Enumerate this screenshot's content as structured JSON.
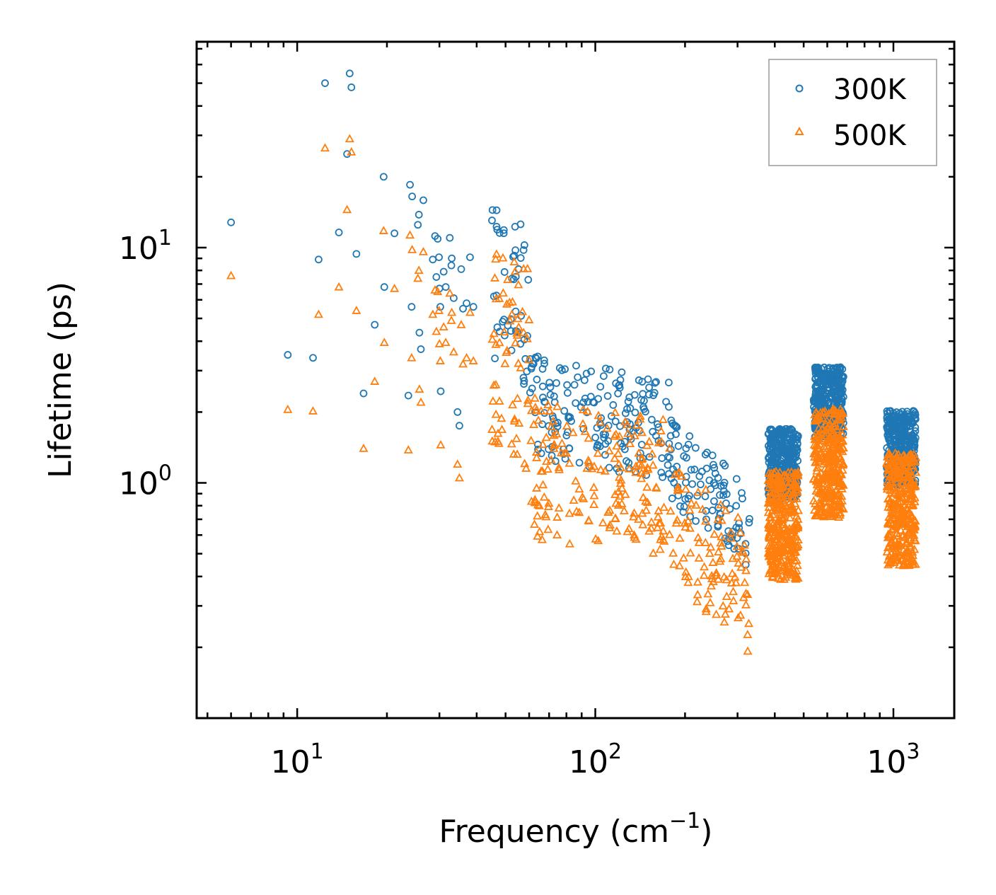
{
  "chart_data": {
    "type": "scatter",
    "xscale": "log",
    "yscale": "log",
    "xlabel": "Frequency (cm",
    "xlabel_sup": "−1",
    "xlabel_end": ")",
    "ylabel": "Lifetime (ps)",
    "xlim": [
      4.6,
      1600
    ],
    "ylim": [
      0.1,
      75
    ],
    "xticks": [
      {
        "base": "10",
        "exp": "1",
        "value": 10
      },
      {
        "base": "10",
        "exp": "2",
        "value": 100
      },
      {
        "base": "10",
        "exp": "3",
        "value": 1000
      }
    ],
    "yticks": [
      {
        "base": "10",
        "exp": "0",
        "value": 1
      },
      {
        "base": "10",
        "exp": "1",
        "value": 10
      }
    ],
    "legend_position": "top-right",
    "series": [
      {
        "name": "300K",
        "marker": "circle",
        "color": "#1f77b4",
        "points": [
          [
            6.0,
            12.8
          ],
          [
            9.3,
            3.5
          ],
          [
            11.3,
            3.4
          ],
          [
            11.8,
            8.9
          ],
          [
            12.4,
            50.0
          ],
          [
            13.8,
            11.6
          ],
          [
            14.7,
            25.0
          ],
          [
            15.0,
            55.0
          ],
          [
            15.2,
            48.0
          ],
          [
            15.8,
            9.4
          ],
          [
            16.7,
            2.4
          ],
          [
            18.2,
            4.7
          ],
          [
            19.5,
            20.0
          ],
          [
            19.6,
            6.8
          ],
          [
            21.2,
            11.5
          ],
          [
            23.6,
            2.35
          ],
          [
            23.9,
            18.5
          ],
          [
            24.2,
            5.6
          ],
          [
            24.3,
            16.5
          ],
          [
            25.4,
            12.5
          ],
          [
            25.6,
            13.8
          ],
          [
            25.7,
            4.35
          ],
          [
            26.0,
            3.7
          ],
          [
            26.5,
            15.9
          ],
          [
            28.5,
            8.9
          ],
          [
            29.0,
            11.2
          ],
          [
            29.3,
            7.5
          ],
          [
            29.6,
            10.9
          ],
          [
            29.9,
            9.1
          ],
          [
            30.0,
            6.7
          ],
          [
            30.2,
            5.6
          ],
          [
            30.3,
            2.45
          ],
          [
            31.0,
            7.9
          ],
          [
            31.5,
            6.8
          ],
          [
            32.5,
            11.0
          ],
          [
            32.9,
            8.4
          ],
          [
            33.0,
            9.0
          ],
          [
            33.5,
            6.1
          ],
          [
            34.5,
            2.0
          ],
          [
            35.0,
            1.75
          ],
          [
            35.5,
            8.1
          ],
          [
            36.0,
            5.5
          ],
          [
            37.0,
            5.8
          ],
          [
            38.0,
            9.1
          ],
          [
            39.0,
            5.6
          ]
        ]
      },
      {
        "name": "500K",
        "marker": "triangle",
        "color": "#ff7f0e",
        "points": [
          [
            6.0,
            7.6
          ],
          [
            9.3,
            2.05
          ],
          [
            11.3,
            2.02
          ],
          [
            11.8,
            5.2
          ],
          [
            12.4,
            26.5
          ],
          [
            13.8,
            6.8
          ],
          [
            14.7,
            14.5
          ],
          [
            15.0,
            29.0
          ],
          [
            15.2,
            25.5
          ],
          [
            15.8,
            5.4
          ],
          [
            16.7,
            1.4
          ],
          [
            18.2,
            2.7
          ],
          [
            19.5,
            11.8
          ],
          [
            19.6,
            3.95
          ],
          [
            21.2,
            6.7
          ],
          [
            23.6,
            1.38
          ],
          [
            23.9,
            11.3
          ],
          [
            24.2,
            3.4
          ],
          [
            24.3,
            9.8
          ],
          [
            25.4,
            7.4
          ],
          [
            25.6,
            8.0
          ],
          [
            25.7,
            2.5
          ],
          [
            26.0,
            2.2
          ],
          [
            26.5,
            9.6
          ],
          [
            28.5,
            5.2
          ],
          [
            29.0,
            6.6
          ],
          [
            29.3,
            4.4
          ],
          [
            29.6,
            6.5
          ],
          [
            29.9,
            5.4
          ],
          [
            30.0,
            3.9
          ],
          [
            30.2,
            3.3
          ],
          [
            30.3,
            1.45
          ],
          [
            31.0,
            4.6
          ],
          [
            31.5,
            3.95
          ],
          [
            32.5,
            6.4
          ],
          [
            32.9,
            4.9
          ],
          [
            33.0,
            5.3
          ],
          [
            33.5,
            3.6
          ],
          [
            34.5,
            1.2
          ],
          [
            35.0,
            1.05
          ],
          [
            35.5,
            4.7
          ],
          [
            36.0,
            3.2
          ],
          [
            37.0,
            3.4
          ],
          [
            38.0,
            5.3
          ],
          [
            39.0,
            3.3
          ]
        ]
      }
    ]
  }
}
